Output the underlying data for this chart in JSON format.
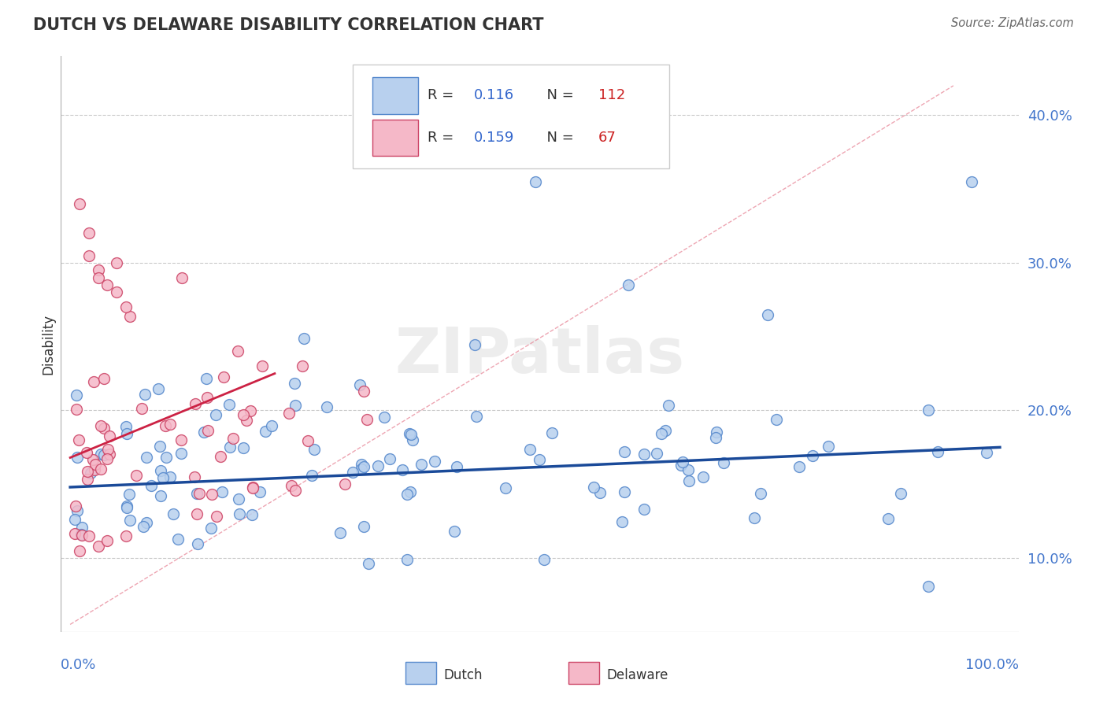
{
  "title": "DUTCH VS DELAWARE DISABILITY CORRELATION CHART",
  "source": "Source: ZipAtlas.com",
  "ylabel": "Disability",
  "watermark": "ZIPatlas",
  "dutch_R": 0.116,
  "dutch_N": 112,
  "delaware_R": 0.159,
  "delaware_N": 67,
  "dutch_color": "#b8d0ee",
  "dutch_edge_color": "#5588cc",
  "delaware_color": "#f5b8c8",
  "delaware_edge_color": "#cc4466",
  "dutch_line_color": "#1a4a99",
  "delaware_line_color": "#cc2244",
  "delaware_dash_color": "#e88899",
  "title_color": "#333333",
  "axis_label_color": "#4477cc",
  "legend_R_color": "#3366cc",
  "legend_N_color": "#cc2222",
  "background_color": "#ffffff",
  "grid_color": "#bbbbbb",
  "xlim": [
    0.0,
    1.0
  ],
  "ylim": [
    0.05,
    0.44
  ],
  "yticks": [
    0.1,
    0.2,
    0.3,
    0.4
  ],
  "ytick_labels": [
    "10.0%",
    "20.0%",
    "30.0%",
    "40.0%"
  ]
}
